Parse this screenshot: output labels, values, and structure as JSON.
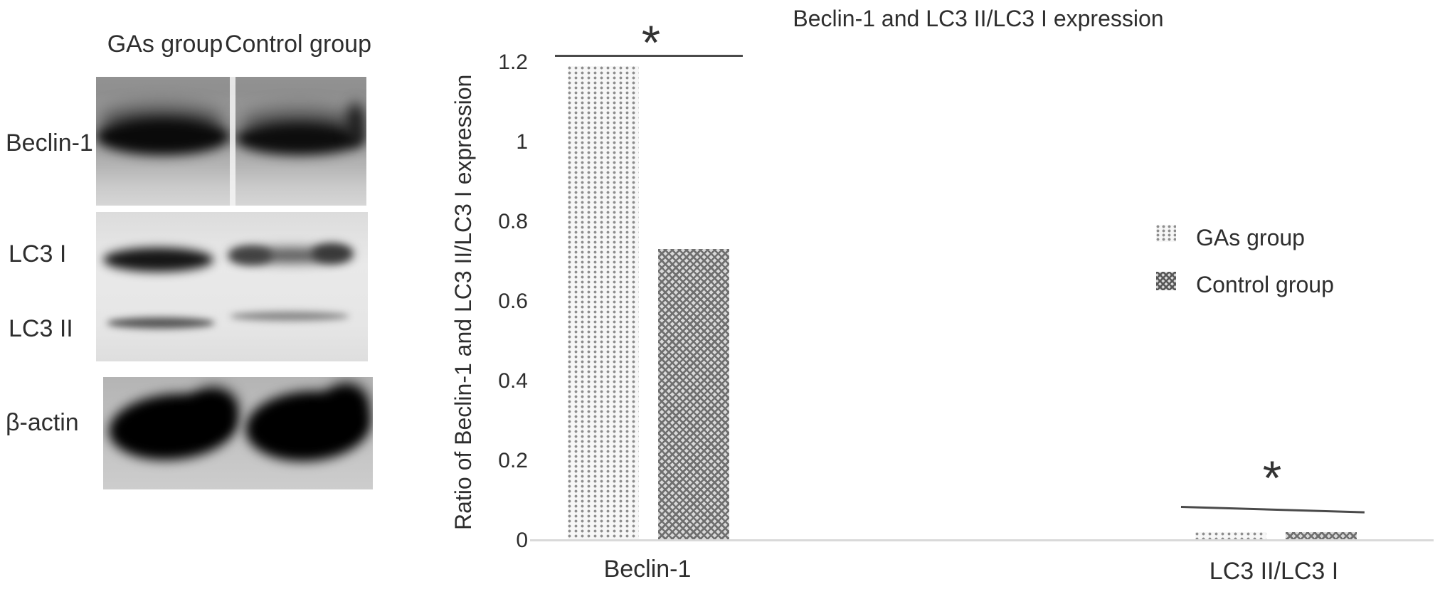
{
  "blot": {
    "column_headers": [
      "GAs group",
      "Control group"
    ],
    "row_labels": [
      "Beclin-1",
      "LC3 I",
      "LC3 II",
      "β-actin"
    ]
  },
  "chart_data": {
    "type": "bar",
    "title": "Beclin-1 and LC3 II/LC3 I expression",
    "ylabel": "Ratio of Beclin-1 and LC3 II/LC3 I expression",
    "categories": [
      "Beclin-1",
      "LC3 II/LC3 I"
    ],
    "series": [
      {
        "name": "GAs group",
        "pattern": "dots",
        "values": [
          1.19,
          0.02
        ]
      },
      {
        "name": "Control group",
        "pattern": "crosshatch",
        "values": [
          0.73,
          0.02
        ]
      }
    ],
    "ylim": [
      0,
      1.2
    ],
    "yticks": [
      "0",
      "0.2",
      "0.4",
      "0.6",
      "0.8",
      "1",
      "1.2"
    ],
    "grid": false,
    "legend_position": "middle-right",
    "annotations": [
      {
        "type": "significance",
        "label": "*",
        "category": "Beclin-1"
      },
      {
        "type": "significance",
        "label": "*",
        "category": "LC3 II/LC3 I"
      }
    ]
  },
  "colors": {
    "text": "#2e2e2e",
    "axis_line": "#d9d9d9",
    "significance_line": "#4a4a4a",
    "bar_dot": "#8d8d8d",
    "bar_dot_bg": "#f7f7f7",
    "bar_cross": "#6f6f6f",
    "bar_cross_bg": "#d9d9d9"
  }
}
